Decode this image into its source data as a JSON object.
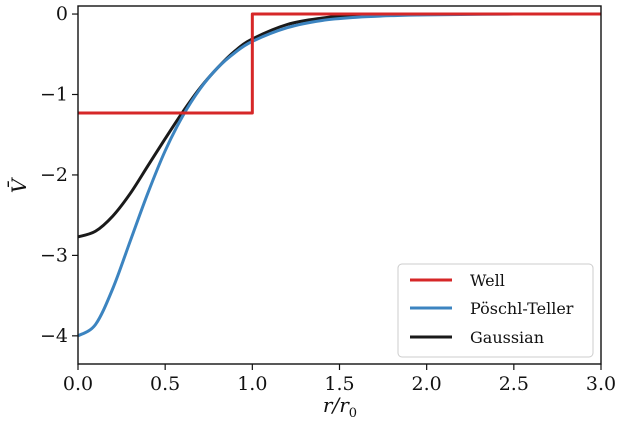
{
  "chart_data": {
    "type": "line",
    "title": "",
    "xlabel": "r/r0",
    "ylabel": "V̄",
    "xlim": [
      0,
      3
    ],
    "ylim": [
      -4.35,
      0.1
    ],
    "xticks": [
      0,
      0.5,
      1.0,
      1.5,
      2.0,
      2.5,
      3.0
    ],
    "xtick_labels": [
      "0.0",
      "0.5",
      "1.0",
      "1.5",
      "2.0",
      "2.5",
      "3.0"
    ],
    "yticks": [
      0,
      -1,
      -2,
      -3,
      -4
    ],
    "ytick_labels": [
      "0",
      "−1",
      "−2",
      "−3",
      "−4"
    ],
    "grid": false,
    "legend": {
      "position": "lower-right",
      "entries": [
        "Well",
        "Pöschl-Teller",
        "Gaussian"
      ]
    },
    "series": [
      {
        "name": "Well",
        "color": "#d62728",
        "style": "step",
        "x": [
          0,
          1.0,
          1.0,
          3.0
        ],
        "y": [
          -1.23,
          -1.23,
          0,
          0
        ]
      },
      {
        "name": "Pöschl-Teller",
        "color": "#3c84c0",
        "x": [
          0,
          0.1,
          0.2,
          0.3,
          0.4,
          0.5,
          0.6,
          0.7,
          0.8,
          0.9,
          1.0,
          1.2,
          1.4,
          1.6,
          1.8,
          2.0,
          2.5,
          3.0
        ],
        "y": [
          -4.0,
          -3.86,
          -3.41,
          -2.82,
          -2.23,
          -1.7,
          -1.27,
          -0.93,
          -0.67,
          -0.48,
          -0.34,
          -0.17,
          -0.08,
          -0.04,
          -0.02,
          -0.01,
          0.0,
          0.0
        ]
      },
      {
        "name": "Gaussian",
        "color": "#1a1a1a",
        "x": [
          0,
          0.1,
          0.2,
          0.3,
          0.4,
          0.5,
          0.6,
          0.7,
          0.8,
          0.9,
          1.0,
          1.2,
          1.4,
          1.6,
          1.8,
          2.0,
          2.5,
          3.0
        ],
        "y": [
          -2.77,
          -2.7,
          -2.51,
          -2.23,
          -1.89,
          -1.55,
          -1.22,
          -0.92,
          -0.67,
          -0.46,
          -0.31,
          -0.13,
          -0.05,
          -0.01,
          0.0,
          0.0,
          0.0,
          0.0
        ]
      }
    ]
  }
}
